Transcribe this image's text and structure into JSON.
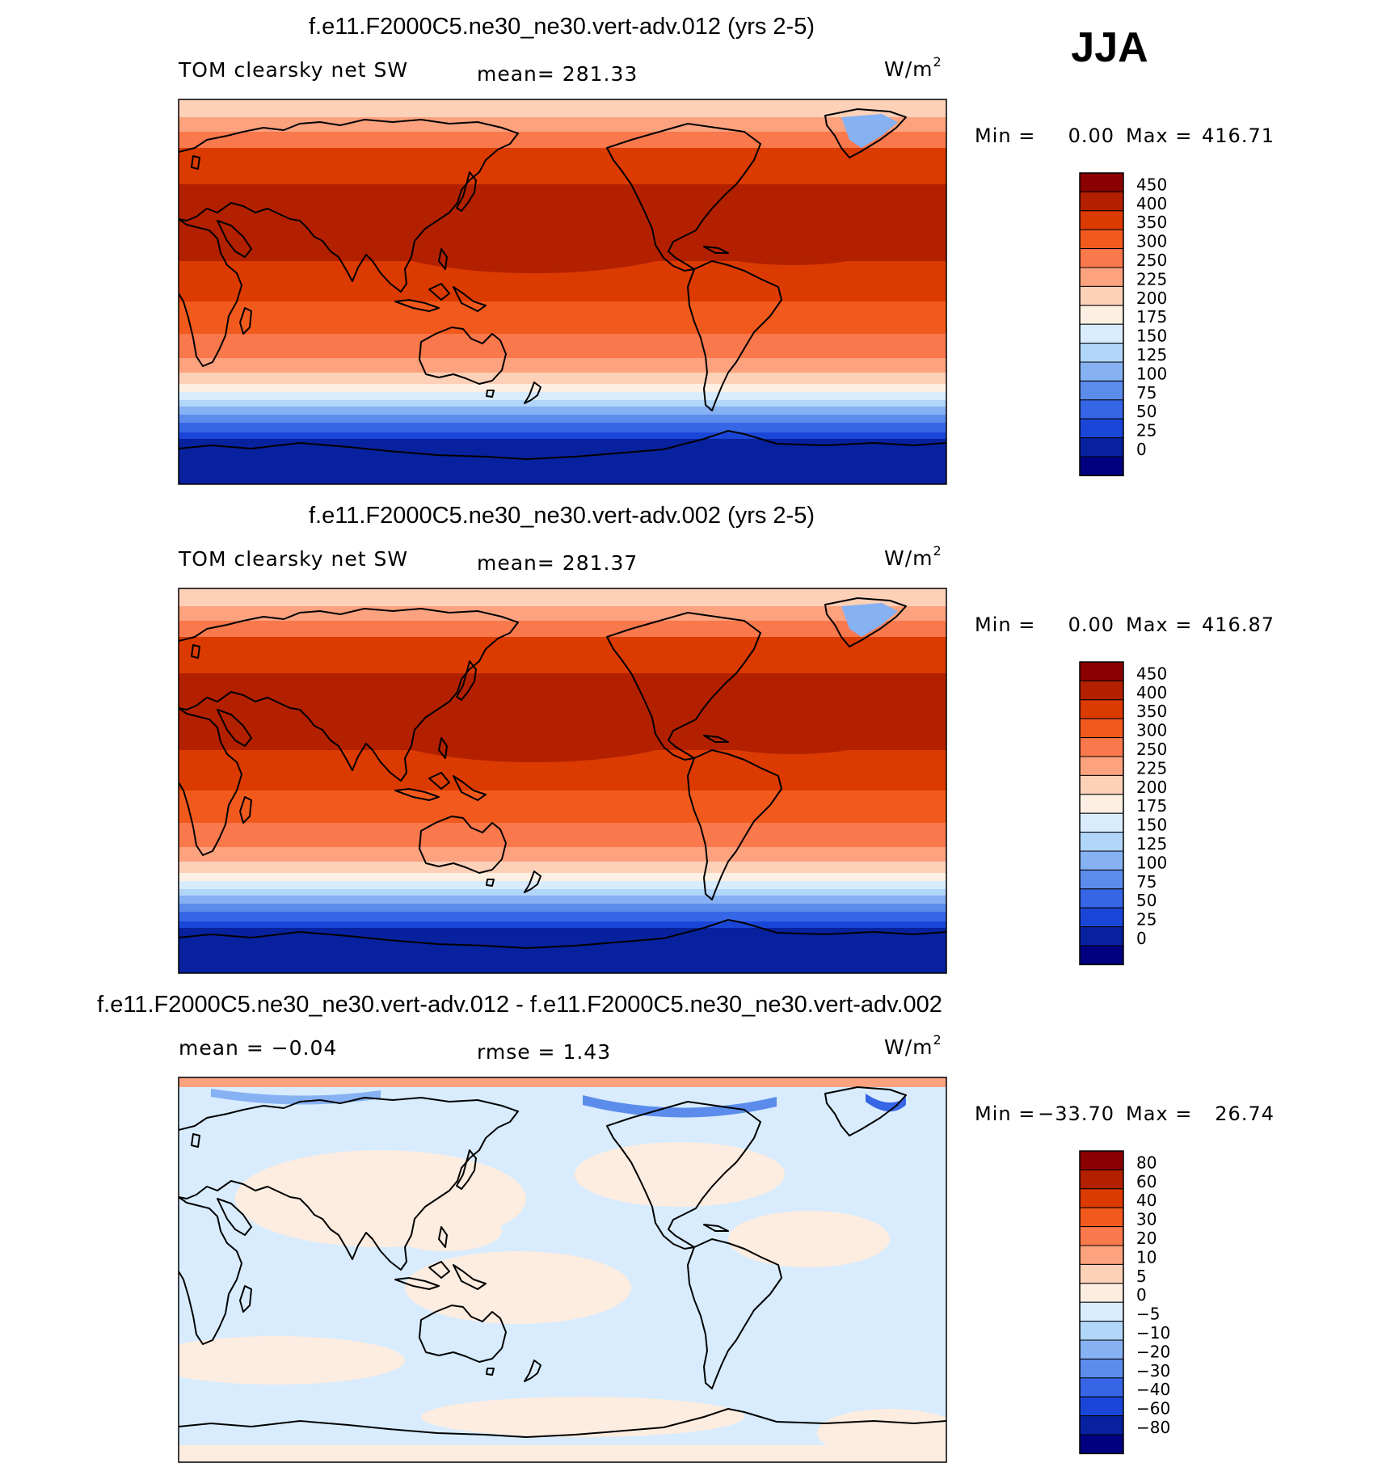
{
  "season": "JJA",
  "panels": [
    {
      "title": "f.e11.F2000C5.ne30_ne30.vert-adv.012 (yrs 2-5)",
      "left_label": "TOM clearsky net SW",
      "stat1": "mean= 281.33",
      "stat2": "",
      "units": "W/m",
      "units_sup": "2",
      "min_label": "Min =",
      "min_value": "0.00",
      "max_label": "Max =",
      "max_value": "416.71",
      "colorbar": {
        "levels": [
          "450",
          "400",
          "350",
          "300",
          "250",
          "225",
          "200",
          "175",
          "150",
          "125",
          "100",
          "75",
          "50",
          "25",
          "0"
        ],
        "colors": [
          "#8b0000",
          "#b22000",
          "#db3a00",
          "#f25a1d",
          "#f9784c",
          "#fca27f",
          "#fdd0b8",
          "#fdf0e3",
          "#d8ecfd",
          "#b2d5fa",
          "#86b1f3",
          "#5b8cec",
          "#3666e6",
          "#1a46d8",
          "#08219e",
          "#000080"
        ]
      },
      "field": {
        "kind": "absolute"
      }
    },
    {
      "title": "f.e11.F2000C5.ne30_ne30.vert-adv.002 (yrs 2-5)",
      "left_label": "TOM clearsky net SW",
      "stat1": "mean= 281.37",
      "stat2": "",
      "units": "W/m",
      "units_sup": "2",
      "min_label": "Min =",
      "min_value": "0.00",
      "max_label": "Max =",
      "max_value": "416.87",
      "colorbar": {
        "levels": [
          "450",
          "400",
          "350",
          "300",
          "250",
          "225",
          "200",
          "175",
          "150",
          "125",
          "100",
          "75",
          "50",
          "25",
          "0"
        ],
        "colors": [
          "#8b0000",
          "#b22000",
          "#db3a00",
          "#f25a1d",
          "#f9784c",
          "#fca27f",
          "#fdd0b8",
          "#fdf0e3",
          "#d8ecfd",
          "#b2d5fa",
          "#86b1f3",
          "#5b8cec",
          "#3666e6",
          "#1a46d8",
          "#08219e",
          "#000080"
        ]
      },
      "field": {
        "kind": "absolute"
      }
    },
    {
      "title": "f.e11.F2000C5.ne30_ne30.vert-adv.012 - f.e11.F2000C5.ne30_ne30.vert-adv.002",
      "left_label": "mean =   −0.04",
      "stat1": "rmse =    1.43",
      "stat2": "",
      "units": "W/m",
      "units_sup": "2",
      "min_label": "Min =",
      "min_value": "−33.70",
      "max_label": "Max =",
      "max_value": "26.74",
      "colorbar": {
        "levels": [
          "80",
          "60",
          "40",
          "30",
          "20",
          "10",
          "5",
          "0",
          "−5",
          "−10",
          "−20",
          "−30",
          "−40",
          "−60",
          "−80"
        ],
        "colors": [
          "#8b0000",
          "#b22000",
          "#db3a00",
          "#f25a1d",
          "#f9784c",
          "#fca27f",
          "#fdd0b8",
          "#fdece0",
          "#d8ecfd",
          "#b2d5fa",
          "#86b1f3",
          "#5b8cec",
          "#3666e6",
          "#1a46d8",
          "#08219e",
          "#000080"
        ]
      },
      "field": {
        "kind": "difference"
      }
    }
  ]
}
